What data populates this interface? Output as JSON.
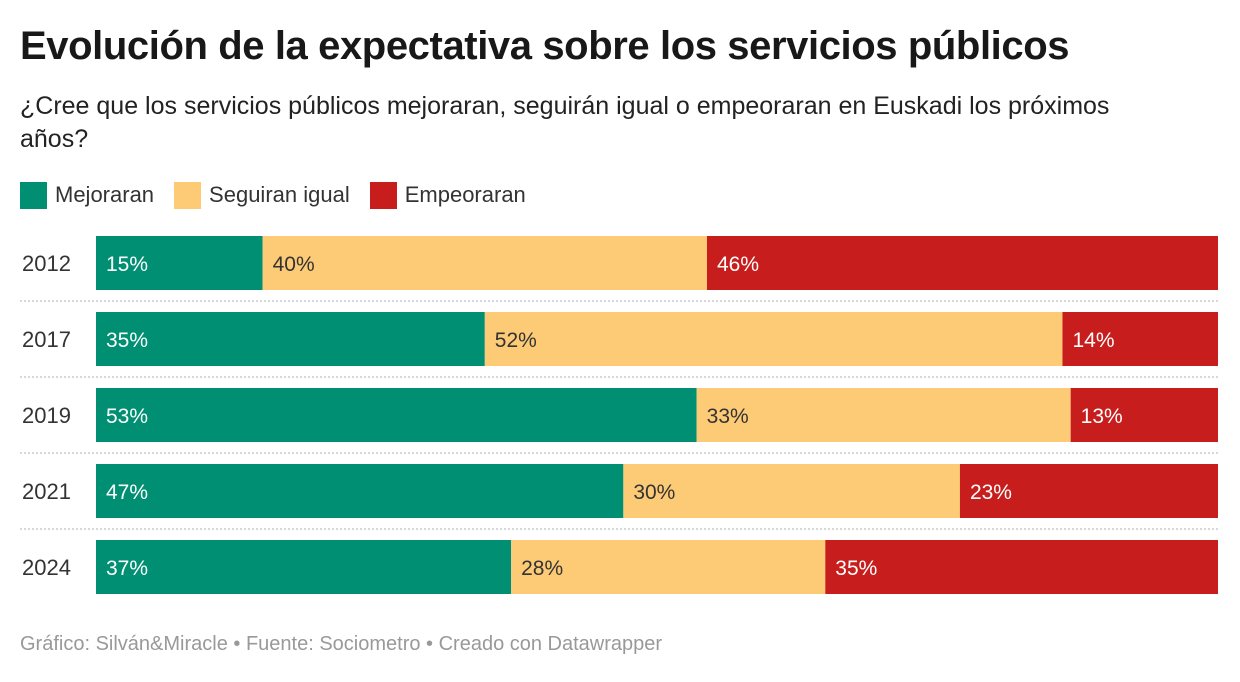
{
  "title": "Evolución de la expectativa sobre los servicios públicos",
  "subtitle": "¿Cree que los servicios públicos mejoraran, seguirán igual o empeoraran en Euskadi los próximos años?",
  "footer": "Gráfico: Silván&Miracle • Fuente: Sociometro • Creado con Datawrapper",
  "chart_data": {
    "type": "bar",
    "orientation": "horizontal",
    "stacked": true,
    "categories": [
      "2012",
      "2017",
      "2019",
      "2021",
      "2024"
    ],
    "series": [
      {
        "name": "Mejoraran",
        "color": "#008f72",
        "label_color": "#ffffff",
        "values": [
          15,
          35,
          53,
          47,
          37
        ]
      },
      {
        "name": "Seguiran igual",
        "color": "#fdca76",
        "label_color": "#333333",
        "values": [
          40,
          52,
          33,
          30,
          28
        ]
      },
      {
        "name": "Empeoraran",
        "color": "#c71e1d",
        "label_color": "#ffffff",
        "values": [
          46,
          14,
          13,
          23,
          35
        ]
      }
    ],
    "value_suffix": "%",
    "legend_position": "top-left"
  }
}
